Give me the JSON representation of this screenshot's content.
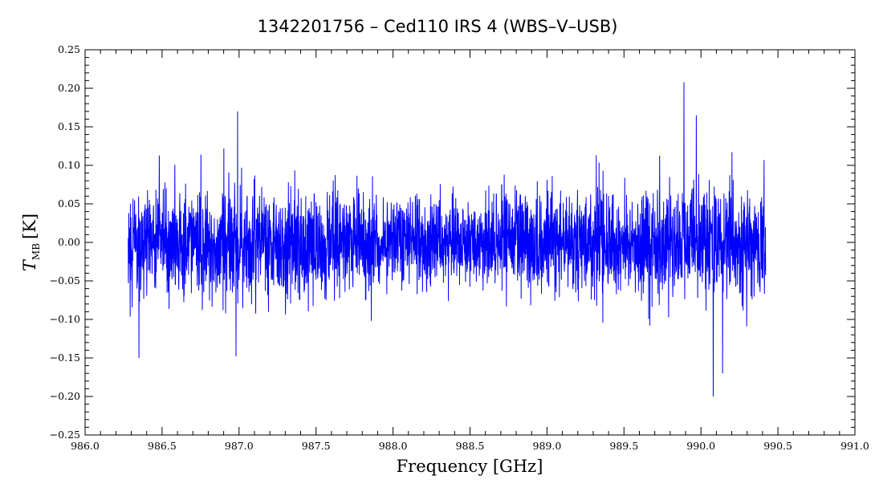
{
  "chart_data": {
    "type": "line",
    "title": "1342201756 – Ced110 IRS 4 (WBS–V–USB)",
    "xlabel": "Frequency [GHz]",
    "ylabel": {
      "symbol": "T",
      "subscript": "MB",
      "unit": "[K]"
    },
    "xlim": [
      986.0,
      991.0
    ],
    "ylim": [
      -0.25,
      0.25
    ],
    "x_ticks": [
      "986.0",
      "986.5",
      "987.0",
      "987.5",
      "988.0",
      "988.5",
      "989.0",
      "989.5",
      "990.0",
      "990.5",
      "991.0"
    ],
    "y_ticks": [
      "-0.25",
      "-0.20",
      "-0.15",
      "-0.10",
      "-0.05",
      "0.00",
      "0.05",
      "0.10",
      "0.15",
      "0.20",
      "0.25"
    ],
    "grid": false,
    "legend": "none",
    "series": [
      {
        "color": "#0000ff",
        "x_range": [
          986.28,
          990.42
        ],
        "noise_rms": 0.035,
        "notable_points": [
          {
            "x": 986.35,
            "y": -0.15
          },
          {
            "x": 986.99,
            "y": 0.17
          },
          {
            "x": 986.98,
            "y": -0.148
          },
          {
            "x": 989.89,
            "y": 0.208
          },
          {
            "x": 990.08,
            "y": -0.2
          },
          {
            "x": 990.14,
            "y": -0.17
          },
          {
            "x": 989.97,
            "y": 0.165
          }
        ]
      }
    ]
  }
}
